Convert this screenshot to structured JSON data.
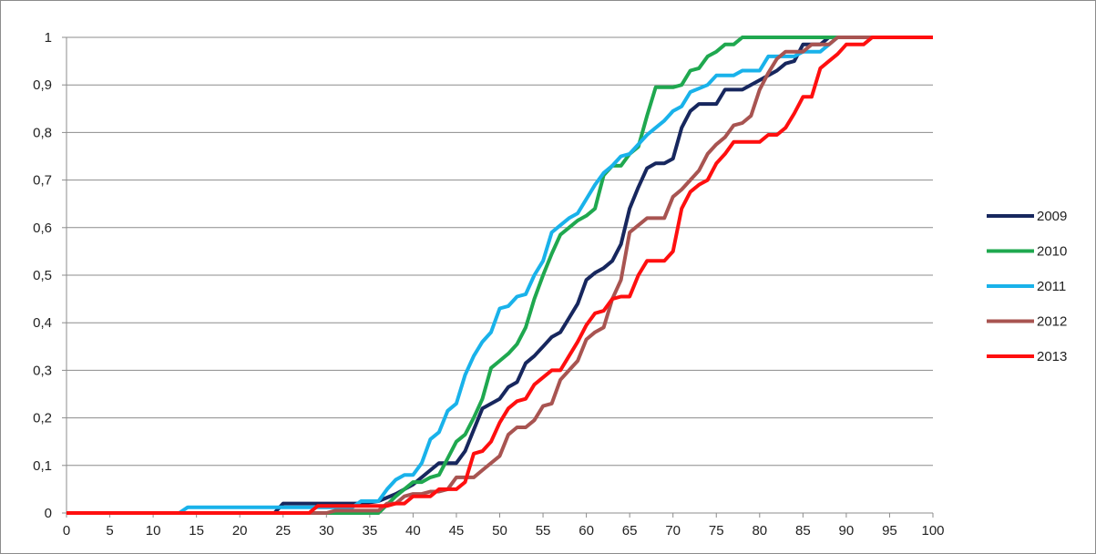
{
  "chart_data": {
    "type": "line",
    "title": "",
    "xlabel": "",
    "ylabel": "",
    "xlim": [
      0,
      100
    ],
    "ylim": [
      0,
      1
    ],
    "x_ticks": [
      "0",
      "5",
      "10",
      "15",
      "20",
      "25",
      "30",
      "35",
      "40",
      "45",
      "50",
      "55",
      "60",
      "65",
      "70",
      "75",
      "80",
      "85",
      "90",
      "95",
      "100"
    ],
    "y_ticks": [
      "0",
      "0,1",
      "0,2",
      "0,3",
      "0,4",
      "0,5",
      "0,6",
      "0,7",
      "0,8",
      "0,9",
      "1"
    ],
    "grid": "horizontal",
    "legend_position": "right",
    "series": [
      {
        "name": "2009",
        "color": "#17275e",
        "points": [
          [
            0,
            0
          ],
          [
            24,
            0
          ],
          [
            25,
            0.02
          ],
          [
            34,
            0.02
          ],
          [
            36,
            0.025
          ],
          [
            38,
            0.04
          ],
          [
            40,
            0.06
          ],
          [
            42,
            0.09
          ],
          [
            43,
            0.105
          ],
          [
            45,
            0.105
          ],
          [
            46,
            0.13
          ],
          [
            48,
            0.22
          ],
          [
            50,
            0.24
          ],
          [
            51,
            0.265
          ],
          [
            52,
            0.275
          ],
          [
            53,
            0.315
          ],
          [
            54,
            0.33
          ],
          [
            55,
            0.35
          ],
          [
            56,
            0.37
          ],
          [
            57,
            0.38
          ],
          [
            58,
            0.41
          ],
          [
            59,
            0.44
          ],
          [
            60,
            0.49
          ],
          [
            61,
            0.505
          ],
          [
            62,
            0.515
          ],
          [
            63,
            0.53
          ],
          [
            64,
            0.565
          ],
          [
            65,
            0.64
          ],
          [
            66,
            0.685
          ],
          [
            67,
            0.725
          ],
          [
            68,
            0.735
          ],
          [
            69,
            0.735
          ],
          [
            70,
            0.745
          ],
          [
            71,
            0.81
          ],
          [
            72,
            0.845
          ],
          [
            73,
            0.86
          ],
          [
            75,
            0.86
          ],
          [
            76,
            0.89
          ],
          [
            78,
            0.89
          ],
          [
            80,
            0.91
          ],
          [
            82,
            0.93
          ],
          [
            83,
            0.945
          ],
          [
            84,
            0.95
          ],
          [
            85,
            0.985
          ],
          [
            87,
            0.985
          ],
          [
            88,
            1
          ],
          [
            100,
            1
          ]
        ]
      },
      {
        "name": "2010",
        "color": "#1fa84f",
        "points": [
          [
            0,
            0
          ],
          [
            36,
            0
          ],
          [
            38,
            0.035
          ],
          [
            40,
            0.065
          ],
          [
            41,
            0.065
          ],
          [
            42,
            0.075
          ],
          [
            43,
            0.08
          ],
          [
            44,
            0.115
          ],
          [
            45,
            0.15
          ],
          [
            46,
            0.165
          ],
          [
            47,
            0.2
          ],
          [
            48,
            0.24
          ],
          [
            49,
            0.305
          ],
          [
            50,
            0.32
          ],
          [
            51,
            0.335
          ],
          [
            52,
            0.355
          ],
          [
            53,
            0.39
          ],
          [
            54,
            0.45
          ],
          [
            55,
            0.5
          ],
          [
            56,
            0.545
          ],
          [
            57,
            0.585
          ],
          [
            58,
            0.6
          ],
          [
            59,
            0.615
          ],
          [
            60,
            0.625
          ],
          [
            61,
            0.64
          ],
          [
            62,
            0.71
          ],
          [
            63,
            0.73
          ],
          [
            64,
            0.73
          ],
          [
            65,
            0.755
          ],
          [
            66,
            0.77
          ],
          [
            67,
            0.835
          ],
          [
            68,
            0.895
          ],
          [
            70,
            0.895
          ],
          [
            71,
            0.9
          ],
          [
            72,
            0.93
          ],
          [
            73,
            0.935
          ],
          [
            74,
            0.96
          ],
          [
            75,
            0.97
          ],
          [
            76,
            0.985
          ],
          [
            77,
            0.985
          ],
          [
            78,
            1
          ],
          [
            100,
            1
          ]
        ]
      },
      {
        "name": "2011",
        "color": "#19b2ea",
        "points": [
          [
            0,
            0
          ],
          [
            13,
            0
          ],
          [
            14,
            0.012
          ],
          [
            33,
            0.012
          ],
          [
            34,
            0.025
          ],
          [
            36,
            0.025
          ],
          [
            37,
            0.05
          ],
          [
            38,
            0.07
          ],
          [
            39,
            0.08
          ],
          [
            40,
            0.08
          ],
          [
            41,
            0.105
          ],
          [
            42,
            0.155
          ],
          [
            43,
            0.17
          ],
          [
            44,
            0.215
          ],
          [
            45,
            0.23
          ],
          [
            46,
            0.29
          ],
          [
            47,
            0.33
          ],
          [
            48,
            0.36
          ],
          [
            49,
            0.38
          ],
          [
            50,
            0.43
          ],
          [
            51,
            0.435
          ],
          [
            52,
            0.455
          ],
          [
            53,
            0.46
          ],
          [
            54,
            0.5
          ],
          [
            55,
            0.53
          ],
          [
            56,
            0.59
          ],
          [
            57,
            0.605
          ],
          [
            58,
            0.62
          ],
          [
            59,
            0.63
          ],
          [
            60,
            0.66
          ],
          [
            61,
            0.69
          ],
          [
            62,
            0.715
          ],
          [
            63,
            0.73
          ],
          [
            64,
            0.75
          ],
          [
            65,
            0.755
          ],
          [
            66,
            0.775
          ],
          [
            67,
            0.795
          ],
          [
            68,
            0.81
          ],
          [
            69,
            0.825
          ],
          [
            70,
            0.845
          ],
          [
            71,
            0.855
          ],
          [
            72,
            0.885
          ],
          [
            74,
            0.9
          ],
          [
            75,
            0.92
          ],
          [
            76,
            0.92
          ],
          [
            77,
            0.92
          ],
          [
            78,
            0.93
          ],
          [
            80,
            0.93
          ],
          [
            81,
            0.96
          ],
          [
            84,
            0.96
          ],
          [
            85,
            0.97
          ],
          [
            87,
            0.97
          ],
          [
            88,
            0.985
          ],
          [
            89,
            1
          ],
          [
            100,
            1
          ]
        ]
      },
      {
        "name": "2012",
        "color": "#a85451",
        "points": [
          [
            0,
            0
          ],
          [
            30,
            0
          ],
          [
            31,
            0.005
          ],
          [
            36,
            0.005
          ],
          [
            37,
            0.02
          ],
          [
            38,
            0.02
          ],
          [
            39,
            0.035
          ],
          [
            40,
            0.04
          ],
          [
            41,
            0.04
          ],
          [
            42,
            0.045
          ],
          [
            43,
            0.045
          ],
          [
            44,
            0.05
          ],
          [
            45,
            0.075
          ],
          [
            47,
            0.075
          ],
          [
            48,
            0.09
          ],
          [
            50,
            0.12
          ],
          [
            51,
            0.165
          ],
          [
            52,
            0.18
          ],
          [
            53,
            0.18
          ],
          [
            54,
            0.195
          ],
          [
            55,
            0.225
          ],
          [
            56,
            0.23
          ],
          [
            57,
            0.28
          ],
          [
            58,
            0.3
          ],
          [
            59,
            0.32
          ],
          [
            60,
            0.365
          ],
          [
            61,
            0.38
          ],
          [
            62,
            0.39
          ],
          [
            63,
            0.45
          ],
          [
            64,
            0.49
          ],
          [
            65,
            0.59
          ],
          [
            66,
            0.605
          ],
          [
            67,
            0.62
          ],
          [
            69,
            0.62
          ],
          [
            70,
            0.665
          ],
          [
            71,
            0.68
          ],
          [
            72,
            0.7
          ],
          [
            73,
            0.72
          ],
          [
            74,
            0.755
          ],
          [
            75,
            0.775
          ],
          [
            76,
            0.79
          ],
          [
            77,
            0.815
          ],
          [
            78,
            0.82
          ],
          [
            79,
            0.835
          ],
          [
            80,
            0.89
          ],
          [
            81,
            0.925
          ],
          [
            82,
            0.955
          ],
          [
            83,
            0.97
          ],
          [
            85,
            0.97
          ],
          [
            86,
            0.985
          ],
          [
            88,
            0.985
          ],
          [
            89,
            1
          ],
          [
            100,
            1
          ]
        ]
      },
      {
        "name": "2013",
        "color": "#ff0f0f",
        "points": [
          [
            0,
            0
          ],
          [
            28,
            0
          ],
          [
            29,
            0.015
          ],
          [
            37,
            0.015
          ],
          [
            38,
            0.02
          ],
          [
            39,
            0.02
          ],
          [
            40,
            0.035
          ],
          [
            42,
            0.035
          ],
          [
            43,
            0.05
          ],
          [
            45,
            0.05
          ],
          [
            46,
            0.065
          ],
          [
            47,
            0.125
          ],
          [
            48,
            0.13
          ],
          [
            49,
            0.15
          ],
          [
            50,
            0.19
          ],
          [
            51,
            0.22
          ],
          [
            52,
            0.235
          ],
          [
            53,
            0.24
          ],
          [
            54,
            0.27
          ],
          [
            55,
            0.285
          ],
          [
            56,
            0.3
          ],
          [
            57,
            0.3
          ],
          [
            58,
            0.33
          ],
          [
            59,
            0.36
          ],
          [
            60,
            0.395
          ],
          [
            61,
            0.42
          ],
          [
            62,
            0.425
          ],
          [
            63,
            0.45
          ],
          [
            64,
            0.455
          ],
          [
            65,
            0.455
          ],
          [
            66,
            0.5
          ],
          [
            67,
            0.53
          ],
          [
            69,
            0.53
          ],
          [
            70,
            0.55
          ],
          [
            71,
            0.64
          ],
          [
            72,
            0.675
          ],
          [
            73,
            0.69
          ],
          [
            74,
            0.7
          ],
          [
            75,
            0.735
          ],
          [
            76,
            0.755
          ],
          [
            77,
            0.78
          ],
          [
            80,
            0.78
          ],
          [
            81,
            0.795
          ],
          [
            82,
            0.795
          ],
          [
            83,
            0.81
          ],
          [
            84,
            0.84
          ],
          [
            85,
            0.875
          ],
          [
            86,
            0.875
          ],
          [
            87,
            0.935
          ],
          [
            88,
            0.95
          ],
          [
            89,
            0.965
          ],
          [
            90,
            0.985
          ],
          [
            92,
            0.985
          ],
          [
            93,
            1
          ],
          [
            100,
            1
          ]
        ]
      }
    ]
  }
}
